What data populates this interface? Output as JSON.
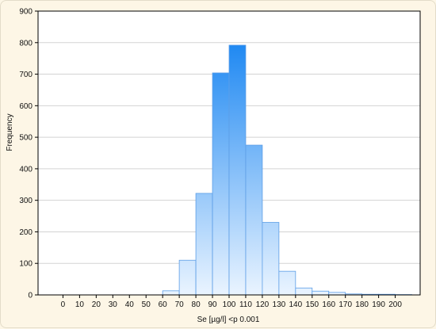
{
  "chart_data": {
    "type": "bar",
    "title": "",
    "xlabel": "Se [µg/l] <p 0.001",
    "ylabel": "Frequency",
    "ylim": [
      0,
      900
    ],
    "yticks": [
      0,
      100,
      200,
      300,
      400,
      500,
      600,
      700,
      800,
      900
    ],
    "xlim": [
      -15,
      215
    ],
    "xticks": [
      0,
      10,
      20,
      30,
      40,
      50,
      60,
      70,
      80,
      90,
      100,
      110,
      120,
      130,
      140,
      150,
      160,
      170,
      180,
      190,
      200
    ],
    "bin_width": 10,
    "bins": [
      {
        "x": 60,
        "value": 13
      },
      {
        "x": 70,
        "value": 110
      },
      {
        "x": 80,
        "value": 322
      },
      {
        "x": 90,
        "value": 704
      },
      {
        "x": 100,
        "value": 792
      },
      {
        "x": 110,
        "value": 475
      },
      {
        "x": 120,
        "value": 230
      },
      {
        "x": 130,
        "value": 75
      },
      {
        "x": 140,
        "value": 22
      },
      {
        "x": 150,
        "value": 12
      },
      {
        "x": 160,
        "value": 8
      },
      {
        "x": 170,
        "value": 3
      },
      {
        "x": 180,
        "value": 2
      },
      {
        "x": 190,
        "value": 2
      },
      {
        "x": 200,
        "value": 1
      }
    ],
    "grid": true,
    "colors": {
      "bar_top": "#1e88f2",
      "bar_bottom": "#eaf4ff",
      "bar_stroke": "#5d9ee6",
      "grid": "#d3d3d3",
      "plot_background": "#ffffff",
      "page_background": "#fdf6e6"
    }
  }
}
